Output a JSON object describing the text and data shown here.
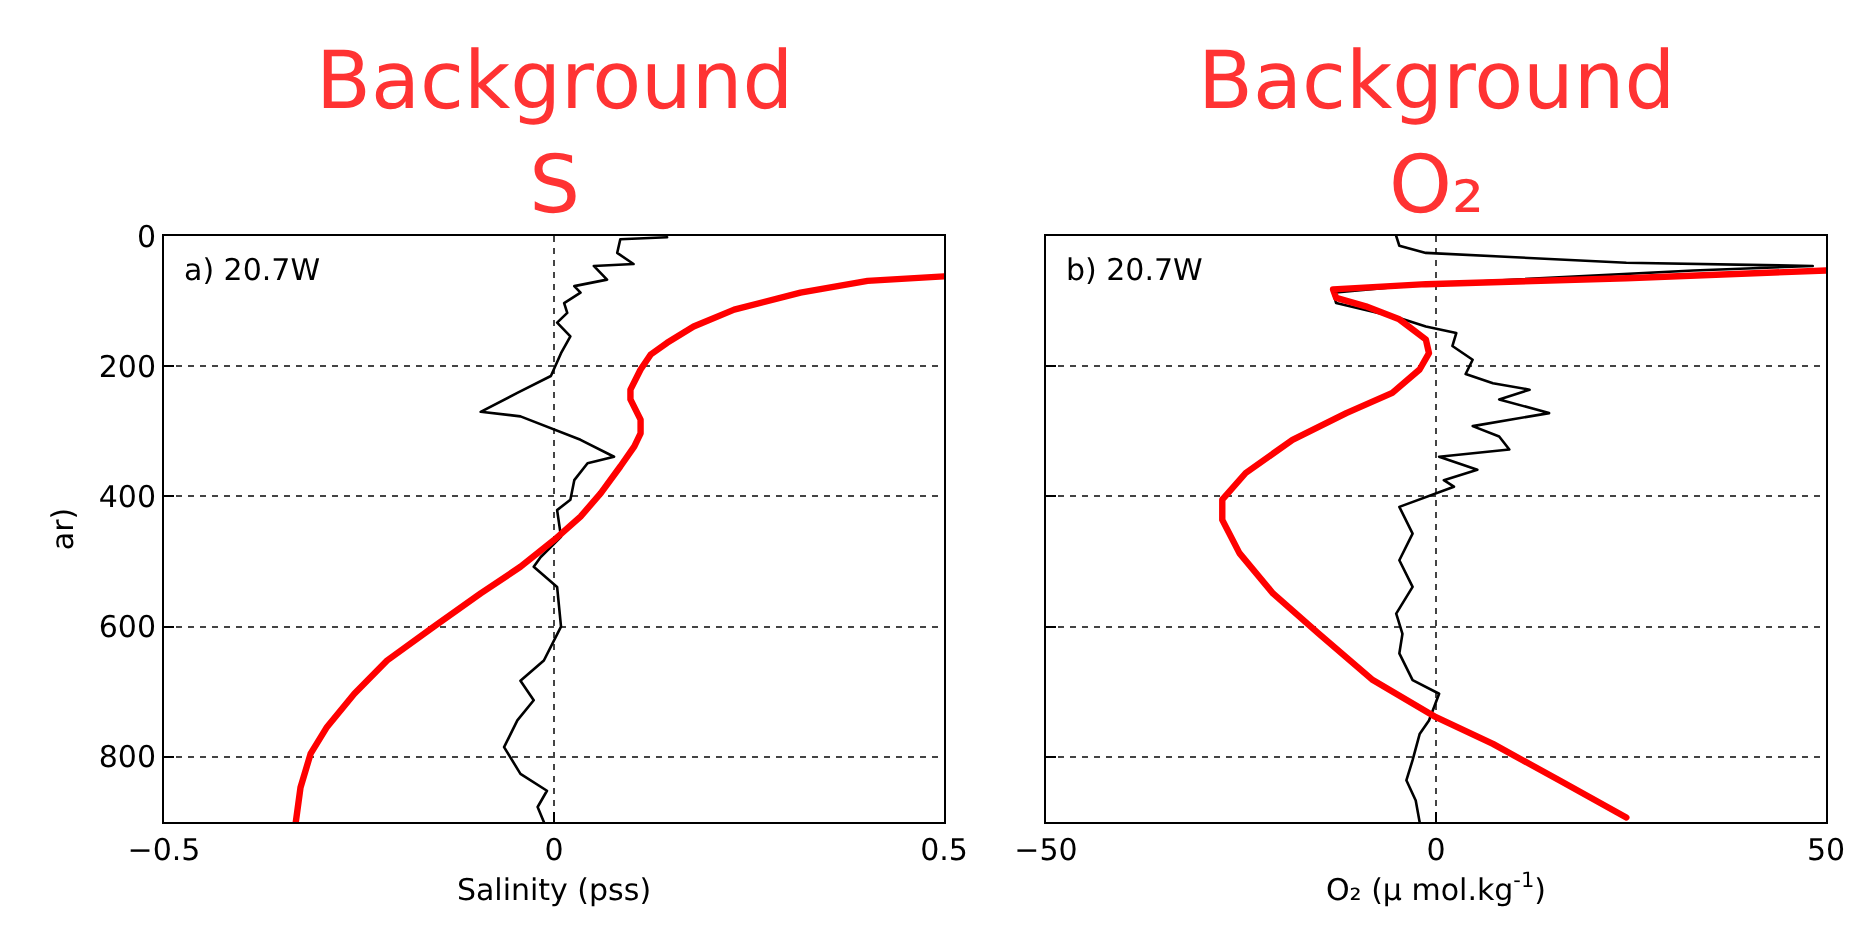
{
  "chart_data": [
    {
      "type": "line",
      "title": "Background\nS",
      "xlabel": "Salinity (pss)",
      "ylabel": "ar)",
      "annotations": [
        "a) 20.7W"
      ],
      "xlim": [
        -0.5,
        0.5
      ],
      "xticks": [
        {
          "value": -0.5,
          "label": "−0.5"
        },
        0,
        0.5
      ],
      "ylim": [
        900,
        0
      ],
      "yticks": [
        0,
        200,
        400,
        600,
        800
      ],
      "grid": true,
      "line_style": "solid",
      "series": [
        {
          "color": "#000000",
          "x": [
            0.145,
            0.085,
            0.081,
            0.102,
            0.051,
            0.068,
            0.026,
            0.034,
            0.013,
            0.017,
            0.004,
            0.021,
            0.009,
            -0.004,
            -0.047,
            -0.094,
            -0.043,
            0.034,
            0.077,
            0.043,
            0.026,
            0.021,
            0.004,
            0.009,
            -0.017,
            -0.026,
            0.004,
            0.009,
            -0.013,
            -0.043,
            -0.026,
            -0.047,
            -0.064,
            -0.043,
            -0.009,
            -0.021,
            -0.013
          ],
          "values": [
            2,
            5,
            26,
            43,
            46,
            67,
            77,
            87,
            103,
            118,
            133,
            154,
            180,
            215,
            241,
            270,
            277,
            313,
            339,
            349,
            375,
            405,
            421,
            462,
            493,
            508,
            539,
            600,
            652,
            683,
            713,
            744,
            785,
            826,
            852,
            877,
            900
          ]
        },
        {
          "color": "#ff0000",
          "x": [
            0.5,
            0.402,
            0.316,
            0.231,
            0.179,
            0.145,
            0.124,
            0.111,
            0.098,
            0.098,
            0.111,
            0.111,
            0.103,
            0.085,
            0.06,
            0.034,
            0.0,
            -0.043,
            -0.094,
            -0.154,
            -0.214,
            -0.256,
            -0.291,
            -0.312,
            -0.325,
            -0.331
          ],
          "values": [
            62,
            69,
            87,
            113,
            139,
            164,
            182,
            205,
            236,
            251,
            282,
            303,
            323,
            354,
            395,
            431,
            467,
            508,
            549,
            600,
            652,
            703,
            754,
            795,
            847,
            900
          ]
        }
      ]
    },
    {
      "type": "line",
      "title": "Background\nO₂",
      "xlabel": "O₂ (μ mol.kg$^{-1}$)",
      "annotations": [
        "b) 20.7W"
      ],
      "xlim": [
        -50,
        50
      ],
      "xticks": [
        {
          "value": -50,
          "label": "−50"
        },
        0,
        50
      ],
      "ylim": [
        900,
        0
      ],
      "yticks": [
        0,
        200,
        400,
        600,
        800
      ],
      "tick_labels": "x",
      "grid": true,
      "line_style": "solid",
      "series": [
        {
          "color": "#000000",
          "x": [
            -5.1,
            -4.7,
            -1.3,
            24.4,
            48.3,
            33,
            -1.3,
            -13.2,
            -12.8,
            -4.7,
            -1.3,
            2.6,
            2.1,
            4.7,
            3.8,
            7.3,
            12,
            8.1,
            14.5,
            4.7,
            8.1,
            9.4,
            0.4,
            5.3,
            1.0,
            2.3,
            -4.7,
            -3.0,
            -4.7,
            -3.0,
            -5.1,
            -4.3,
            -4.7,
            -3.0,
            0.4,
            -0.9,
            -2.1,
            -3.0,
            -3.8,
            -2.6,
            -2.1
          ],
          "values": [
            0,
            15,
            26,
            41,
            46,
            53,
            74,
            87,
            103,
            126,
            139,
            149,
            169,
            190,
            212,
            226,
            236,
            251,
            272,
            292,
            308,
            328,
            339,
            359,
            375,
            385,
            416,
            457,
            498,
            539,
            580,
            611,
            641,
            682,
            703,
            744,
            765,
            805,
            836,
            867,
            900
          ]
        },
        {
          "color": "#ff0000",
          "x": [
            50,
            24.4,
            -1.3,
            -13.2,
            -12.8,
            -9.0,
            -4.7,
            -1.3,
            -0.9,
            -2.1,
            -5.6,
            -11.5,
            -18.4,
            -24.4,
            -27.4,
            -27.4,
            -25.2,
            -20.9,
            -15.0,
            -8.1,
            0,
            7.3,
            15.8,
            24.4
          ],
          "values": [
            53,
            65,
            74,
            82,
            95,
            108,
            128,
            159,
            180,
            205,
            241,
            272,
            313,
            364,
            405,
            436,
            487,
            549,
            611,
            682,
            739,
            780,
            836,
            893
          ]
        }
      ]
    }
  ]
}
